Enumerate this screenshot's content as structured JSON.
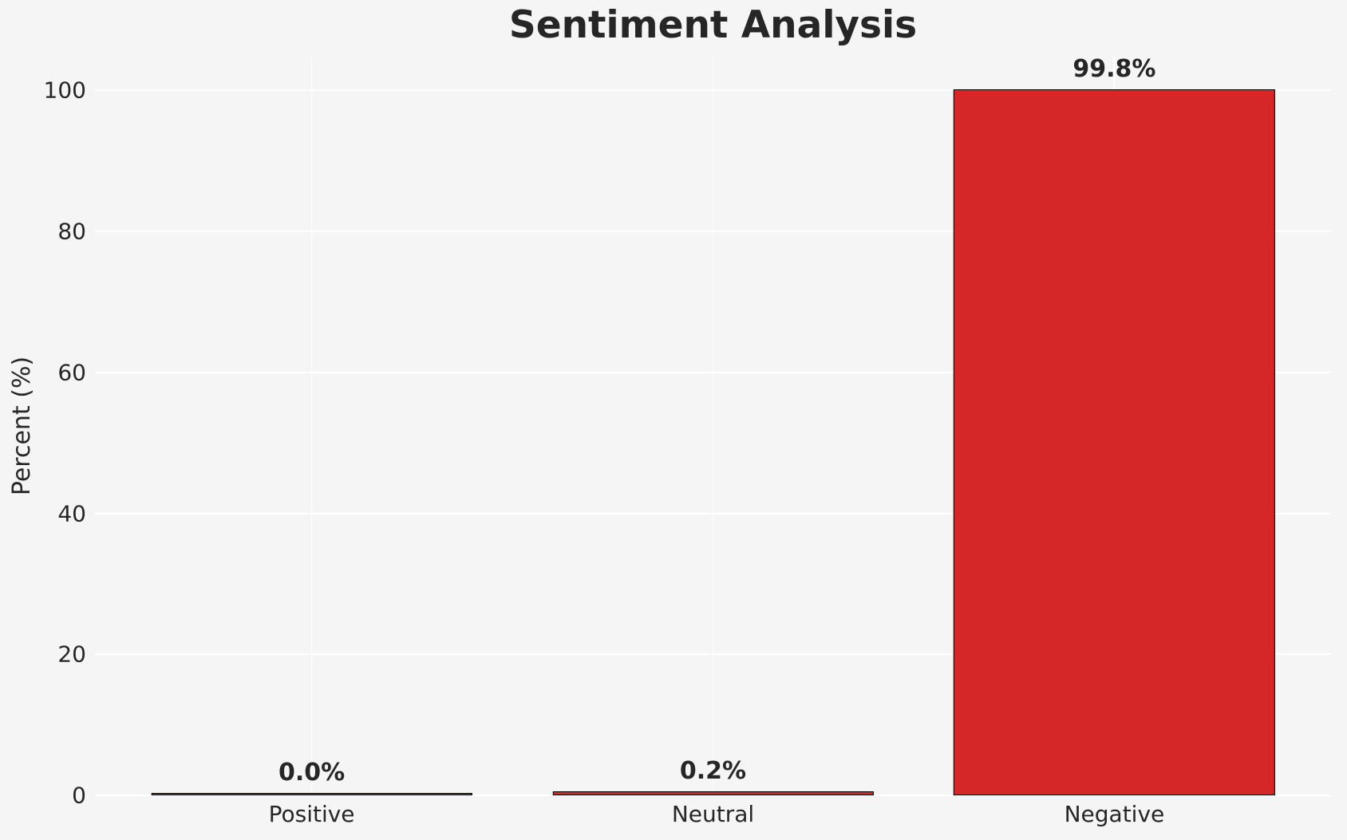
{
  "chart_data": {
    "type": "bar",
    "title": "Sentiment Analysis",
    "xlabel": "",
    "ylabel": "Percent (%)",
    "categories": [
      "Positive",
      "Neutral",
      "Negative"
    ],
    "values": [
      0.0,
      0.2,
      99.8
    ],
    "value_labels": [
      "0.0%",
      "0.2%",
      "99.8%"
    ],
    "yticks": [
      0,
      20,
      40,
      60,
      80,
      100
    ],
    "ytick_labels": [
      "0",
      "20",
      "40",
      "60",
      "80",
      "100"
    ],
    "ylim": [
      0,
      104.8
    ],
    "xlim": [
      -0.54,
      2.54
    ],
    "bar_width": 0.8,
    "grid": "on",
    "legend": "none",
    "colors": {
      "bar_fill": "#d62728",
      "bar_edge": "#000000",
      "background": "#f5f5f6",
      "gridline": "#ffffff",
      "text": "#262626"
    }
  }
}
